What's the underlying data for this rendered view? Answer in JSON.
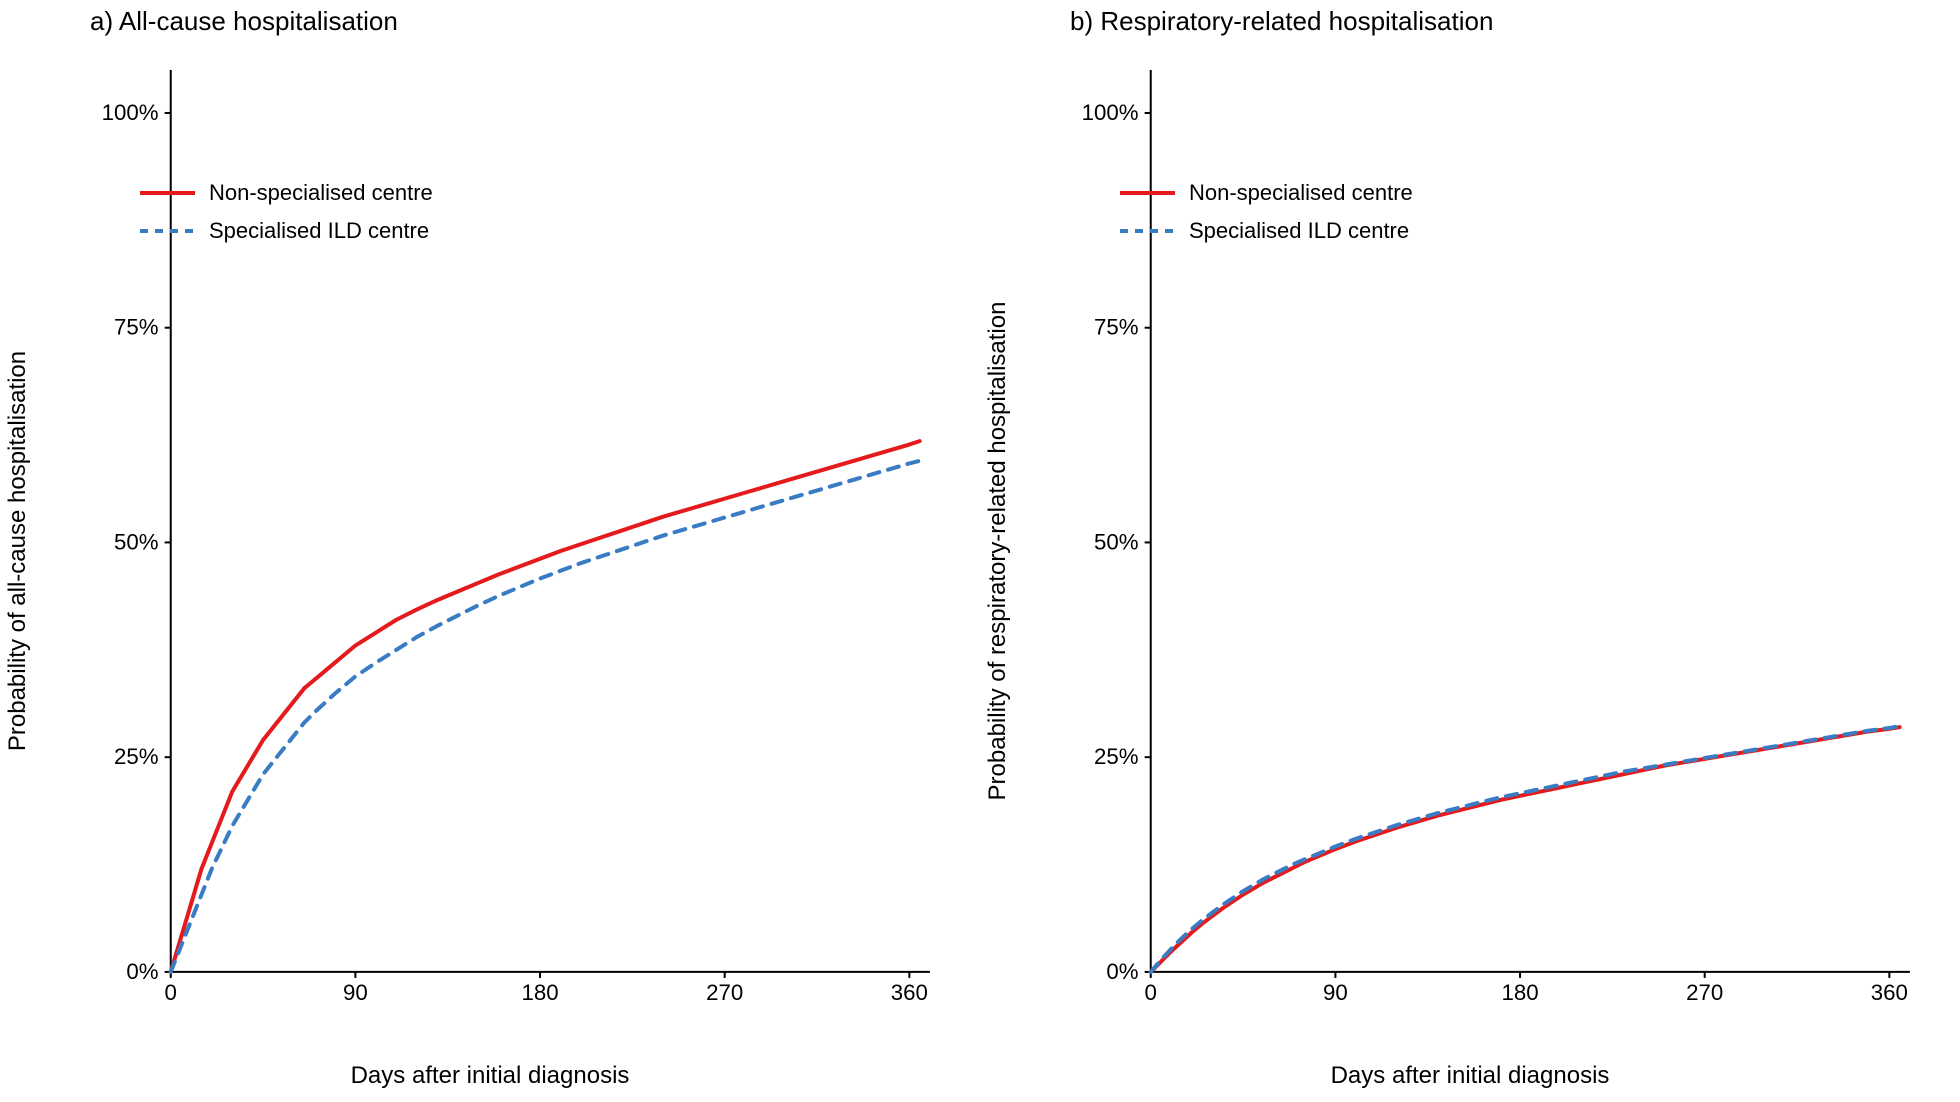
{
  "background_color": "#ffffff",
  "axis_color": "#000000",
  "tick_fontsize": 22,
  "title_fontsize": 26,
  "axis_label_fontsize": 24,
  "legend_fontsize": 22,
  "panels": {
    "a": {
      "title": "a) All-cause hospitalisation",
      "ylabel": "Probability of all-cause hospitalisation",
      "xlabel": "Days after initial diagnosis",
      "xlim": [
        0,
        370
      ],
      "ylim": [
        0,
        105
      ],
      "xticks": [
        0,
        90,
        180,
        270,
        360
      ],
      "yticks": [
        0,
        25,
        50,
        75,
        100
      ],
      "ytick_labels": [
        "0%",
        "25%",
        "50%",
        "75%",
        "100%"
      ],
      "legend": [
        {
          "label": "Non-specialised centre",
          "color": "#e41a1c",
          "dash": "none"
        },
        {
          "label": "Specialised ILD centre",
          "color": "#3a7cc4",
          "dash": "8 7"
        }
      ],
      "series": [
        {
          "name": "Non-specialised centre",
          "color": "#e41a1c",
          "dash": "none",
          "width": 4,
          "points": [
            [
              0,
              0
            ],
            [
              5,
              4
            ],
            [
              10,
              8
            ],
            [
              15,
              12
            ],
            [
              20,
              15
            ],
            [
              25,
              18
            ],
            [
              30,
              21
            ],
            [
              35,
              23
            ],
            [
              40,
              25
            ],
            [
              45,
              27
            ],
            [
              50,
              28.5
            ],
            [
              55,
              30
            ],
            [
              60,
              31.5
            ],
            [
              65,
              33
            ],
            [
              70,
              34
            ],
            [
              75,
              35
            ],
            [
              80,
              36
            ],
            [
              85,
              37
            ],
            [
              90,
              38
            ],
            [
              100,
              39.5
            ],
            [
              110,
              41
            ],
            [
              120,
              42.2
            ],
            [
              130,
              43.3
            ],
            [
              140,
              44.3
            ],
            [
              150,
              45.3
            ],
            [
              160,
              46.3
            ],
            [
              170,
              47.2
            ],
            [
              180,
              48.1
            ],
            [
              190,
              49
            ],
            [
              200,
              49.8
            ],
            [
              210,
              50.6
            ],
            [
              220,
              51.4
            ],
            [
              230,
              52.2
            ],
            [
              240,
              53
            ],
            [
              250,
              53.7
            ],
            [
              260,
              54.4
            ],
            [
              270,
              55.1
            ],
            [
              280,
              55.8
            ],
            [
              290,
              56.5
            ],
            [
              300,
              57.2
            ],
            [
              310,
              57.9
            ],
            [
              320,
              58.6
            ],
            [
              330,
              59.3
            ],
            [
              340,
              60
            ],
            [
              350,
              60.7
            ],
            [
              360,
              61.4
            ],
            [
              365,
              61.8
            ]
          ]
        },
        {
          "name": "Specialised ILD centre",
          "color": "#3a7cc4",
          "dash": "11 9",
          "width": 4,
          "points": [
            [
              0,
              0
            ],
            [
              5,
              3
            ],
            [
              10,
              6
            ],
            [
              15,
              9
            ],
            [
              20,
              12
            ],
            [
              25,
              14.5
            ],
            [
              30,
              17
            ],
            [
              35,
              19
            ],
            [
              40,
              21
            ],
            [
              45,
              23
            ],
            [
              50,
              24.5
            ],
            [
              55,
              26
            ],
            [
              60,
              27.5
            ],
            [
              65,
              29
            ],
            [
              70,
              30.2
            ],
            [
              75,
              31.3
            ],
            [
              80,
              32.4
            ],
            [
              85,
              33.4
            ],
            [
              90,
              34.4
            ],
            [
              100,
              36
            ],
            [
              110,
              37.5
            ],
            [
              120,
              39
            ],
            [
              130,
              40.3
            ],
            [
              140,
              41.5
            ],
            [
              150,
              42.7
            ],
            [
              160,
              43.8
            ],
            [
              170,
              44.8
            ],
            [
              180,
              45.8
            ],
            [
              190,
              46.7
            ],
            [
              200,
              47.6
            ],
            [
              210,
              48.4
            ],
            [
              220,
              49.2
            ],
            [
              230,
              50
            ],
            [
              240,
              50.8
            ],
            [
              250,
              51.5
            ],
            [
              260,
              52.2
            ],
            [
              270,
              52.9
            ],
            [
              280,
              53.6
            ],
            [
              290,
              54.3
            ],
            [
              300,
              55
            ],
            [
              310,
              55.7
            ],
            [
              320,
              56.4
            ],
            [
              330,
              57.1
            ],
            [
              340,
              57.8
            ],
            [
              350,
              58.5
            ],
            [
              360,
              59.2
            ],
            [
              365,
              59.5
            ]
          ]
        }
      ]
    },
    "b": {
      "title": "b) Respiratory-related hospitalisation",
      "ylabel": "Probability of respiratory-related hospitalisation",
      "xlabel": "Days after initial diagnosis",
      "xlim": [
        0,
        370
      ],
      "ylim": [
        0,
        105
      ],
      "xticks": [
        0,
        90,
        180,
        270,
        360
      ],
      "yticks": [
        0,
        25,
        50,
        75,
        100
      ],
      "ytick_labels": [
        "0%",
        "25%",
        "50%",
        "75%",
        "100%"
      ],
      "legend": [
        {
          "label": "Non-specialised centre",
          "color": "#e41a1c",
          "dash": "none"
        },
        {
          "label": "Specialised ILD centre",
          "color": "#3a7cc4",
          "dash": "8 7"
        }
      ],
      "series": [
        {
          "name": "Non-specialised centre",
          "color": "#e41a1c",
          "dash": "none",
          "width": 4,
          "points": [
            [
              0,
              0
            ],
            [
              5,
              1.2
            ],
            [
              10,
              2.4
            ],
            [
              15,
              3.5
            ],
            [
              20,
              4.6
            ],
            [
              25,
              5.6
            ],
            [
              30,
              6.5
            ],
            [
              35,
              7.4
            ],
            [
              40,
              8.2
            ],
            [
              45,
              9
            ],
            [
              50,
              9.7
            ],
            [
              55,
              10.4
            ],
            [
              60,
              11
            ],
            [
              65,
              11.6
            ],
            [
              70,
              12.2
            ],
            [
              75,
              12.8
            ],
            [
              80,
              13.3
            ],
            [
              85,
              13.8
            ],
            [
              90,
              14.3
            ],
            [
              100,
              15.2
            ],
            [
              110,
              16
            ],
            [
              120,
              16.8
            ],
            [
              130,
              17.5
            ],
            [
              140,
              18.2
            ],
            [
              150,
              18.8
            ],
            [
              160,
              19.4
            ],
            [
              170,
              20
            ],
            [
              180,
              20.5
            ],
            [
              190,
              21
            ],
            [
              200,
              21.5
            ],
            [
              210,
              22
            ],
            [
              220,
              22.5
            ],
            [
              230,
              23
            ],
            [
              240,
              23.5
            ],
            [
              250,
              24
            ],
            [
              260,
              24.4
            ],
            [
              270,
              24.8
            ],
            [
              280,
              25.2
            ],
            [
              290,
              25.6
            ],
            [
              300,
              26
            ],
            [
              310,
              26.4
            ],
            [
              320,
              26.8
            ],
            [
              330,
              27.2
            ],
            [
              340,
              27.6
            ],
            [
              350,
              28
            ],
            [
              360,
              28.3
            ],
            [
              365,
              28.5
            ]
          ]
        },
        {
          "name": "Specialised ILD centre",
          "color": "#3a7cc4",
          "dash": "11 9",
          "width": 4,
          "points": [
            [
              0,
              0
            ],
            [
              5,
              1.4
            ],
            [
              10,
              2.7
            ],
            [
              15,
              3.9
            ],
            [
              20,
              5
            ],
            [
              25,
              6
            ],
            [
              30,
              6.9
            ],
            [
              35,
              7.8
            ],
            [
              40,
              8.6
            ],
            [
              45,
              9.4
            ],
            [
              50,
              10.1
            ],
            [
              55,
              10.8
            ],
            [
              60,
              11.4
            ],
            [
              65,
              12
            ],
            [
              70,
              12.6
            ],
            [
              75,
              13.1
            ],
            [
              80,
              13.6
            ],
            [
              85,
              14.1
            ],
            [
              90,
              14.6
            ],
            [
              100,
              15.5
            ],
            [
              110,
              16.3
            ],
            [
              120,
              17.1
            ],
            [
              130,
              17.8
            ],
            [
              140,
              18.5
            ],
            [
              150,
              19.1
            ],
            [
              160,
              19.7
            ],
            [
              170,
              20.3
            ],
            [
              180,
              20.8
            ],
            [
              190,
              21.3
            ],
            [
              200,
              21.8
            ],
            [
              210,
              22.3
            ],
            [
              220,
              22.8
            ],
            [
              230,
              23.3
            ],
            [
              240,
              23.7
            ],
            [
              250,
              24.1
            ],
            [
              260,
              24.5
            ],
            [
              270,
              24.9
            ],
            [
              280,
              25.3
            ],
            [
              290,
              25.7
            ],
            [
              300,
              26.1
            ],
            [
              310,
              26.5
            ],
            [
              320,
              26.9
            ],
            [
              330,
              27.3
            ],
            [
              340,
              27.7
            ],
            [
              350,
              28.1
            ],
            [
              360,
              28.4
            ],
            [
              365,
              28.6
            ]
          ]
        }
      ]
    }
  }
}
